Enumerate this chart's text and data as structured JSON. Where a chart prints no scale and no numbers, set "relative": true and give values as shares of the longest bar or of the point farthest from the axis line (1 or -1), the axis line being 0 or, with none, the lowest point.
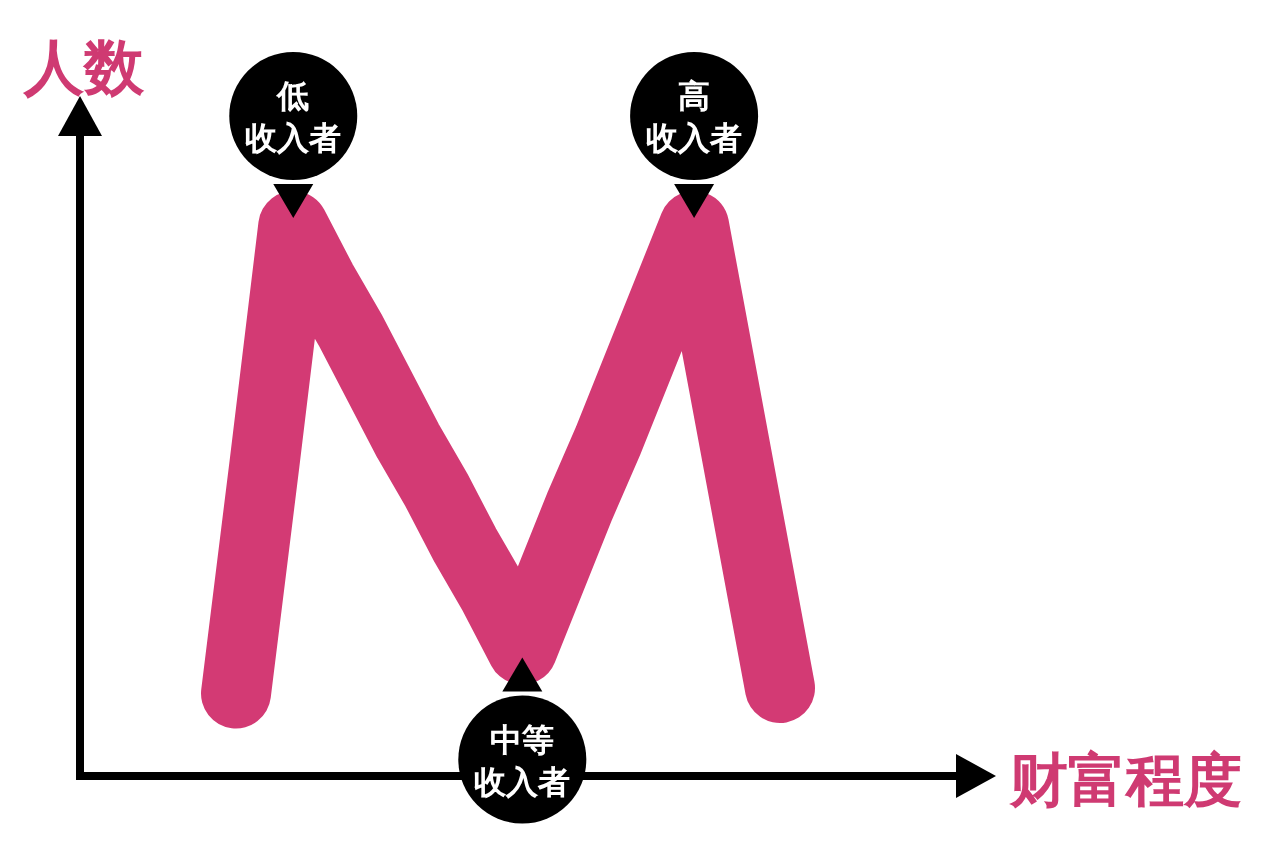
{
  "chart_data": {
    "type": "line",
    "relative": true,
    "xlabel": "财富程度",
    "ylabel": "人数",
    "categories": [
      null,
      null,
      null,
      null,
      null,
      null,
      null,
      null,
      null,
      null,
      null,
      null,
      null,
      null,
      null,
      null,
      null,
      null,
      null,
      null
    ],
    "series": [
      {
        "color": "#d33a74",
        "values": [
          0.15,
          0.57,
          1,
          0.9,
          0.81,
          0.71,
          0.61,
          0.52,
          0.42,
          0.33,
          0.23,
          0.36,
          0.49,
          0.61,
          0.74,
          0.87,
          1,
          0.72,
          0.44,
          0.16
        ]
      }
    ],
    "line_style": "solid",
    "annotations": [
      "低收入者",
      "中等收入者",
      "高收入者"
    ]
  }
}
